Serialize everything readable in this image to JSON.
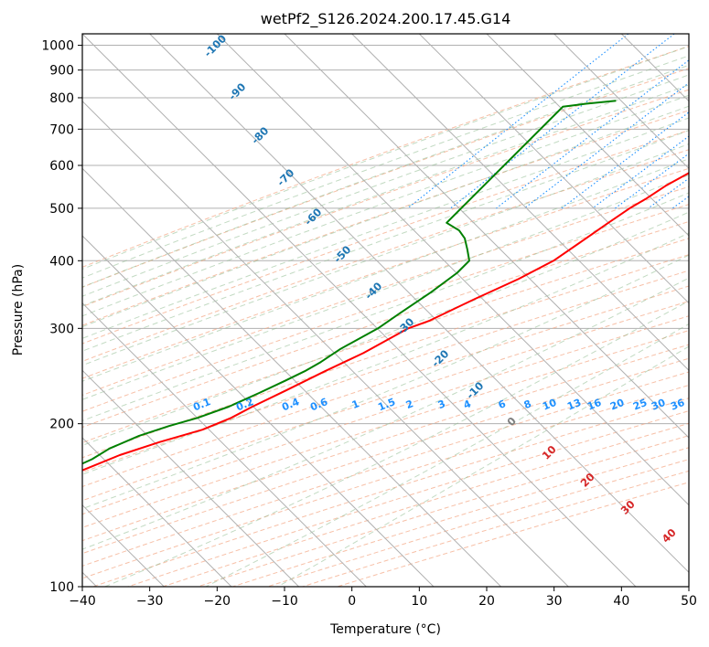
{
  "chart_data": {
    "type": "line",
    "title": "wetPf2_S126.2024.200.17.45.G14",
    "xlabel": "Temperature (°C)",
    "ylabel": "Pressure (hPa)",
    "xlim": [
      -40,
      50
    ],
    "ylim": [
      1050,
      100
    ],
    "y_scale": "log",
    "grid": true,
    "x_ticks": [
      -40,
      -30,
      -20,
      -10,
      0,
      10,
      20,
      30,
      40,
      50
    ],
    "x_tick_labels": [
      "−40",
      "−30",
      "−20",
      "−10",
      "0",
      "10",
      "20",
      "30",
      "40",
      "50"
    ],
    "y_ticks": [
      100,
      200,
      300,
      400,
      500,
      600,
      700,
      800,
      900,
      1000
    ],
    "skew_deg": 45,
    "series": [
      {
        "name": "",
        "color": "#ff0000",
        "pressure": [
          786,
          760,
          740,
          700,
          670,
          630,
          600,
          580,
          550,
          520,
          500,
          470,
          440,
          400,
          370,
          340,
          310,
          300,
          270,
          250,
          230,
          215,
          205,
          195,
          185,
          175,
          165,
          155,
          145,
          135,
          125,
          115,
          108,
          103,
          100
        ],
        "temperature": [
          -13,
          -11,
          -10,
          -10,
          -10.5,
          -10,
          -10.5,
          -11.5,
          -13,
          -14,
          -15,
          -16,
          -17,
          -18.5,
          -21,
          -24.5,
          -28,
          -30,
          -33,
          -36,
          -39,
          -41.5,
          -43,
          -45.5,
          -50,
          -54,
          -57,
          -60,
          -63,
          -66,
          -69,
          -73,
          -76,
          -78.5,
          -80
        ]
      },
      {
        "name": "",
        "color": "#008000",
        "pressure": [
          790,
          780,
          770,
          470,
          455,
          440,
          420,
          400,
          380,
          350,
          320,
          300,
          290,
          275,
          260,
          250,
          240,
          228,
          215,
          205,
          198,
          190,
          180,
          172,
          162,
          152,
          142,
          132,
          122,
          112,
          104,
          100
        ],
        "temperature": [
          -33,
          -37,
          -40,
          -40,
          -37,
          -35,
          -33,
          -31,
          -31,
          -32,
          -33.5,
          -34.5,
          -35.5,
          -37,
          -38,
          -39,
          -40.5,
          -42.5,
          -45,
          -48,
          -51,
          -54,
          -56.5,
          -57.5,
          -60,
          -63,
          -66,
          -69,
          -72,
          -74.5,
          -77,
          -78.5
        ]
      }
    ],
    "dry_adiabat_label_values": [
      "-100",
      "-90",
      "-80",
      "-70",
      "-60",
      "-50",
      "-40",
      "-30",
      "-20",
      "-10"
    ],
    "dry_adiabat_label_color": "#1f77b4",
    "mixing_ratio_labels": [
      "0.1",
      "0.2",
      "0.4",
      "0.6",
      "1",
      "1.5",
      "2",
      "3",
      "4",
      "6",
      "8",
      "10",
      "13",
      "16",
      "20",
      "25",
      "30",
      "36"
    ],
    "mixing_ratio_color": "#1e90ff",
    "moist_adiabat_labels": [
      "0",
      "10",
      "20",
      "30",
      "40"
    ],
    "moist_adiabat_zero_color": "#808080",
    "moist_adiabat_label_color": "#d62728"
  }
}
